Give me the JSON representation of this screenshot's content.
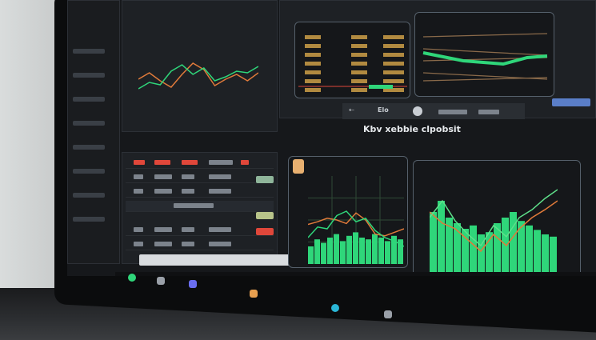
{
  "toolbar": {
    "label": "Elo"
  },
  "main_title": "Kbv xebbie clpobsit",
  "colors": {
    "bg": "#16181b",
    "green": "#2fd67a",
    "orange": "#e07a3a",
    "red": "#e0473a",
    "gold": "#d8a84a"
  },
  "top_chart": {
    "series_green": [
      40,
      48,
      45,
      62,
      70,
      58,
      66,
      50,
      55,
      62,
      60,
      68
    ],
    "series_orange": [
      52,
      60,
      50,
      42,
      58,
      72,
      64,
      44,
      52,
      58,
      50,
      60
    ]
  },
  "mid_chart": {
    "green": [
      30,
      42,
      40,
      55,
      60,
      48,
      52,
      38,
      30,
      26,
      20
    ],
    "orange": [
      45,
      48,
      52,
      50,
      46,
      58,
      50,
      34,
      32,
      36,
      40
    ],
    "volume": [
      20,
      28,
      24,
      30,
      34,
      26,
      32,
      36,
      30,
      28,
      34,
      30,
      26,
      32,
      28
    ]
  },
  "big_chart": {
    "green": [
      55,
      70,
      52,
      40,
      30,
      48,
      38,
      55,
      62,
      72,
      80
    ],
    "orange": [
      60,
      50,
      45,
      35,
      25,
      40,
      30,
      45,
      55,
      62,
      70
    ],
    "volume": [
      60,
      70,
      55,
      50,
      45,
      48,
      40,
      42,
      50,
      55,
      60,
      52,
      48,
      44,
      40,
      38
    ]
  },
  "icons": [
    "sidebar-menu-icon",
    "search-icon",
    "profile-icon",
    "settings-icon",
    "taskbar-app-icon"
  ]
}
